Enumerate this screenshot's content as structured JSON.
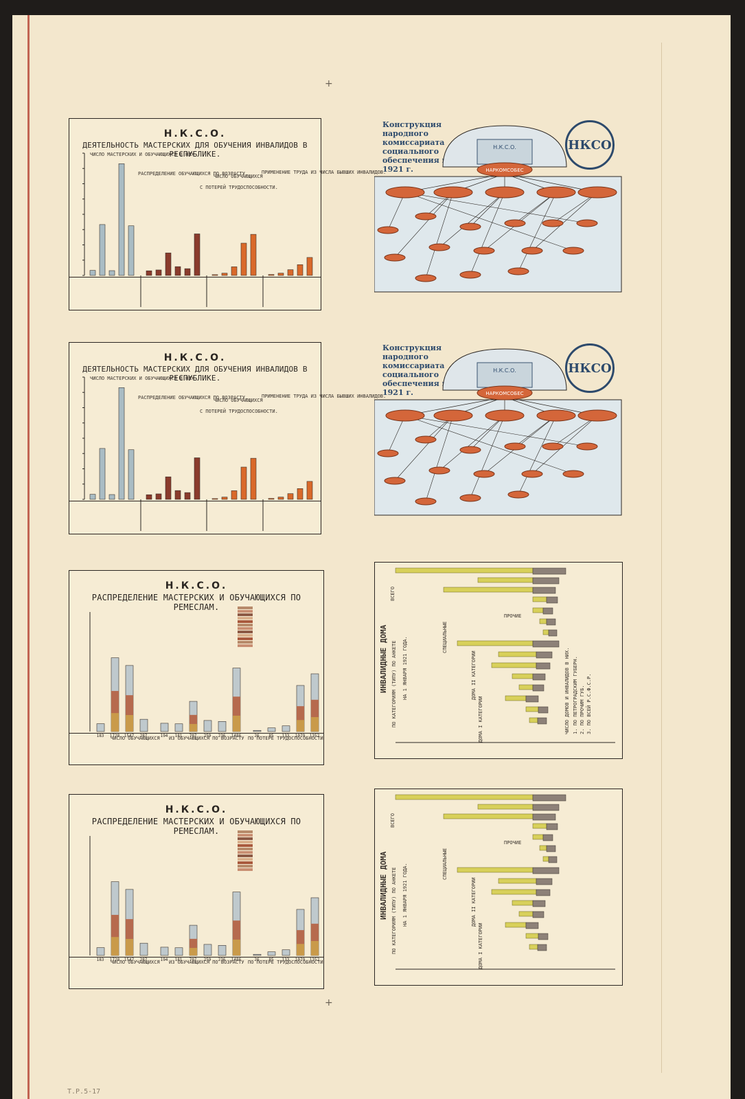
{
  "sheet": {
    "shelfmark": "Т.Р.5-17"
  },
  "panel1": {
    "org": "Н.К.С.О.",
    "title": "ДЕЯТЕЛЬНОСТЬ МАСТЕРСКИХ ДЛЯ ОБУЧЕНИЯ ИНВАЛИДОВ В РЕСПУБЛИКЕ.",
    "note_a": "ЧИСЛО МАСТЕРСКИХ И ОБУЧАЮЩИХСЯ В НИХ",
    "note_b": "РАСПРЕДЕЛЕНИЕ ОБУЧАЮЩИХСЯ ПО ВОЗРАСТУ.",
    "note_c": "ЧИСЛО ОБУЧАЮЩИХСЯ",
    "note_d": "С ПОТЕРЕЙ ТРУДОСПОСОБНОСТИ.",
    "note_e": "ПРИМЕНЕНИЕ ТРУДА ИЗ ЧИСЛА БЫВШИХ ИНВАЛИДОВ."
  },
  "panel3": {
    "org": "Н.К.С.О.",
    "title": "РАСПРЕДЕЛЕНИЕ МАСТЕРСКИХ И ОБУЧАЮЩИХСЯ ПО РЕМЕСЛАМ.",
    "col_a": "ЧИСЛО ОБУЧАЮЩИХСЯ",
    "col_b": "ИЗ ОБУЧАЮЩИХСЯ ПО ВОЗРАСТУ",
    "col_c": "ПО ПОТЕРЕ ТРУДОСПОСОБНОСТИ"
  },
  "panel2": {
    "title": "Конструкция народного комиссариата социального обеспечения на 1921 г.",
    "building": "Н.К.С.О.",
    "hub": "НАРКОМСОБЕС",
    "logo": "НКСО"
  },
  "panel4": {
    "title": "ИНВАЛИДНЫЕ ДОМА",
    "subtitle": "ПО КАТЕГОРИЯМ (ТИПУ) ПО АНКЕТЕ",
    "date": "НА 1 ЯНВАРЯ 1921 ГОДА.",
    "total": "ВСЕГО",
    "other": "ПРОЧИЕ",
    "special": "СПЕЦИАЛЬНЫЕ",
    "cat2": "ДОМА II КАТЕГОРИИ",
    "cat1": "ДОМА I КАТЕГОРИИ",
    "legend1": "ЧИСЛО ДОМОВ И ИНВАЛИДОВ В НИХ.",
    "legend2": "1. ПО ПЕТРОГРАДСКИМ ГУБЕРН.",
    "legend3": "2. ПО ПРОЧИМ ГУБ.",
    "legend4": "3. ПО ВСЕЙ Р.С.Ф.С.Р."
  },
  "chart_data": [
    {
      "type": "bar",
      "title": "ДЕЯТЕЛЬНОСТЬ МАСТЕРСКИХ ДЛЯ ОБУЧЕНИЯ ИНВАЛИДОВ В РЕСПУБЛИКЕ.",
      "groups": [
        {
          "name": "ЧИСЛО МАСТЕРСКИХ И ОБУЧАЮЩИХСЯ В НИХ",
          "color": "#a9bcc4",
          "values": [
            165,
            1665,
            157,
            3655,
            1624
          ]
        },
        {
          "name": "РАСПРЕДЕЛЕНИЕ ОБУЧАЮЩИХСЯ ПО ВОЗРАСТУ",
          "color": "#8a3b2c",
          "values": [
            152,
            180,
            737,
            288,
            222,
            1360
          ]
        },
        {
          "name": "С ПОТЕРЕЙ ТРУДОСПОСОБНОСТИ",
          "color": "#d9692a",
          "values": [
            26,
            74,
            283,
            1056,
            1345
          ]
        },
        {
          "name": "ПРИМЕНЕНИЕ ТРУДА ИЗ ЧИСЛА БЫВШИХ ИНВАЛИДОВ",
          "color": "#d9692a",
          "values": [
            32,
            75,
            188,
            353,
            588
          ]
        }
      ],
      "ylim": [
        0,
        4000
      ]
    },
    {
      "type": "bar",
      "title": "РАСПРЕДЕЛЕНИЕ МАСТЕРСКИХ И ОБУЧАЮЩИХСЯ ПО РЕМЕСЛАМ.",
      "labels": [
        "183",
        "1728",
        "1547",
        "287",
        "194",
        "181",
        "707",
        "259",
        "236",
        "1486",
        "26",
        "85",
        "133",
        "1079",
        "1352"
      ],
      "values": [
        183,
        1728,
        1547,
        287,
        194,
        181,
        707,
        259,
        236,
        1486,
        26,
        85,
        133,
        1079,
        1352
      ],
      "ylim": [
        0,
        2800
      ]
    },
    {
      "type": "bar",
      "title": "ИНВАЛИДНЫЕ ДОМА",
      "orientation": "horizontal",
      "series": [
        {
          "name": "ЧИСЛО ИНВАЛИДОВ",
          "color": "#d8d05a"
        },
        {
          "name": "ЧИСЛО ДОМОВ",
          "color": "#8d8178"
        }
      ]
    }
  ]
}
